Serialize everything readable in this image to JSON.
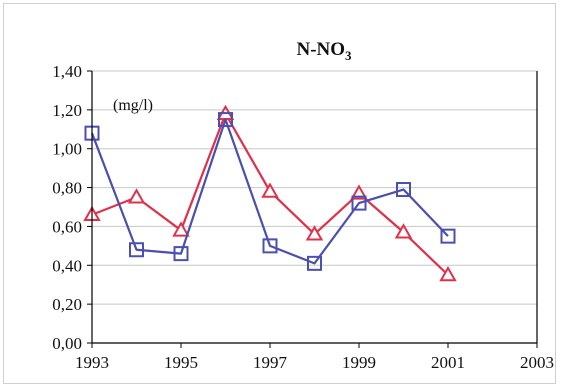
{
  "chart_data": {
    "type": "line",
    "title": "N-NO",
    "title_subscript": "3",
    "unit_label": "(mg/l)",
    "xlabel": "",
    "ylabel": "",
    "xlim": [
      1993,
      2003
    ],
    "ylim": [
      0,
      1.4
    ],
    "x_ticks": [
      1993,
      1995,
      1997,
      1999,
      2001,
      2003
    ],
    "x_tick_labels": [
      "1993",
      "1995",
      "1997",
      "1999",
      "2001",
      "2003"
    ],
    "y_ticks": [
      0,
      0.2,
      0.4,
      0.6,
      0.8,
      1.0,
      1.2,
      1.4
    ],
    "y_tick_labels": [
      "0,00",
      "0,20",
      "0,40",
      "0,60",
      "0,80",
      "1,00",
      "1,20",
      "1,40"
    ],
    "grid": true,
    "legend": false,
    "series": [
      {
        "color": "#e0304a",
        "marker": "triangle",
        "x": [
          1993,
          1994,
          1995,
          1996,
          1997,
          1998,
          1999,
          2000,
          2001
        ],
        "y": [
          0.66,
          0.75,
          0.58,
          1.18,
          0.78,
          0.56,
          0.77,
          0.57,
          0.35
        ]
      },
      {
        "color": "#4a4fb0",
        "marker": "square",
        "x": [
          1993,
          1994,
          1995,
          1996,
          1997,
          1998,
          1999,
          2000,
          2001
        ],
        "y": [
          1.08,
          0.48,
          0.46,
          1.15,
          0.5,
          0.41,
          0.72,
          0.79,
          0.55
        ]
      }
    ]
  }
}
